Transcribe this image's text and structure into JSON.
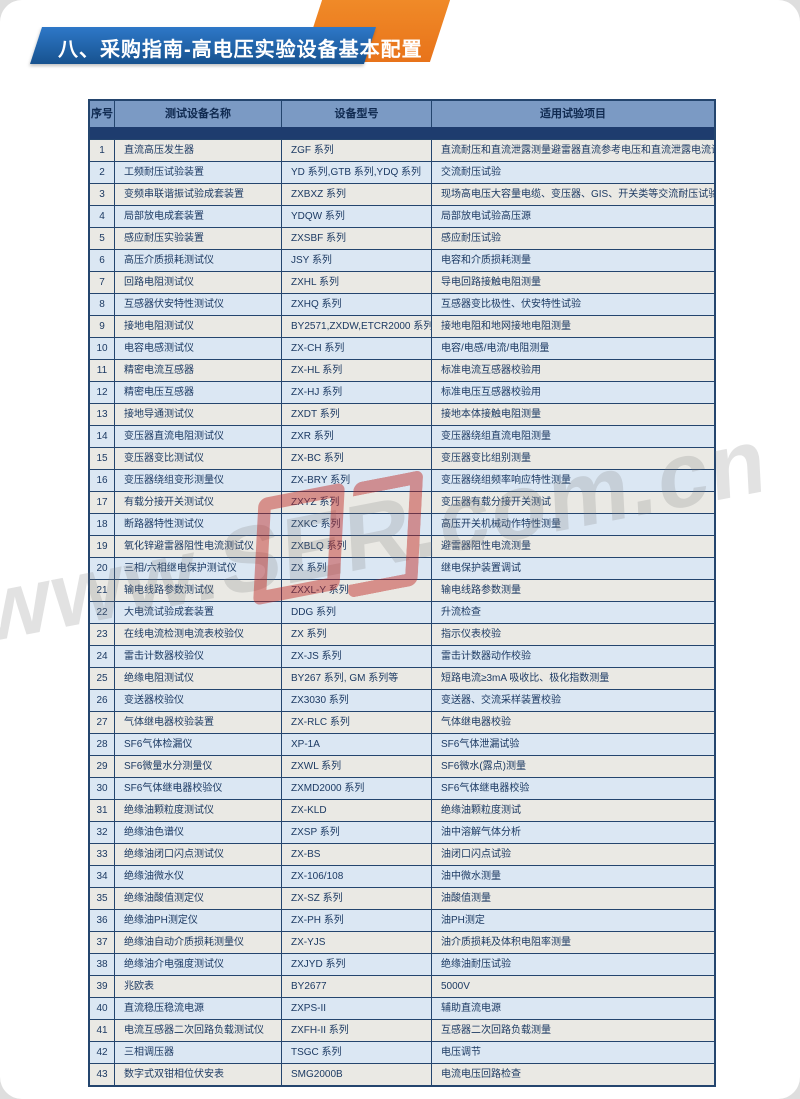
{
  "page": {
    "title": "八、采购指南-高电压实验设备基本配置"
  },
  "watermark": {
    "prefix": "www.",
    "middle": "SER",
    "suffix": ".com.cn"
  },
  "colors": {
    "banner_blue": "#17528f",
    "banner_orange": "#e8731a",
    "header_bg": "#7b9ac4",
    "navy_strip": "#1e3c6e",
    "row_odd": "#eae9e4",
    "row_even": "#dbe7f3",
    "table_border": "#24456e",
    "text": "#1c3a63",
    "watermark_red": "#be231e"
  },
  "table": {
    "headers": [
      "序号",
      "测试设备名称",
      "设备型号",
      "适用试验项目"
    ],
    "rows": [
      {
        "no": "1",
        "name": "直流高压发生器",
        "model": "ZGF 系列",
        "items": "直流耐压和直流泄露测量避雷器直流参考电压和直流泄露电流试验"
      },
      {
        "no": "2",
        "name": "工频耐压试验装置",
        "model": "YD 系列,GTB 系列,YDQ 系列",
        "items": "交流耐压试验"
      },
      {
        "no": "3",
        "name": "变频串联谐振试验成套装置",
        "model": "ZXBXZ 系列",
        "items": "现场高电压大容量电缆、变压器、GIS、开关类等交流耐压试验"
      },
      {
        "no": "4",
        "name": "局部放电成套装置",
        "model": "YDQW 系列",
        "items": "局部放电试验高压源"
      },
      {
        "no": "5",
        "name": "感应耐压实验装置",
        "model": "ZXSBF 系列",
        "items": "感应耐压试验"
      },
      {
        "no": "6",
        "name": "高压介质损耗测试仪",
        "model": "JSY 系列",
        "items": "电容和介质损耗测量"
      },
      {
        "no": "7",
        "name": "回路电阻测试仪",
        "model": "ZXHL 系列",
        "items": "导电回路接触电阻测量"
      },
      {
        "no": "8",
        "name": "互感器伏安特性测试仪",
        "model": "ZXHQ 系列",
        "items": "互感器变比极性、伏安特性试验"
      },
      {
        "no": "9",
        "name": "接地电阻测试仪",
        "model": "BY2571,ZXDW,ETCR2000 系列",
        "items": "接地电阻和地网接地电阻测量"
      },
      {
        "no": "10",
        "name": "电容电感测试仪",
        "model": "ZX-CH 系列",
        "items": "电容/电感/电流/电阻测量"
      },
      {
        "no": "11",
        "name": "精密电流互感器",
        "model": "ZX-HL 系列",
        "items": "标准电流互感器校验用"
      },
      {
        "no": "12",
        "name": "精密电压互感器",
        "model": "ZX-HJ 系列",
        "items": "标准电压互感器校验用"
      },
      {
        "no": "13",
        "name": "接地导通测试仪",
        "model": "ZXDT 系列",
        "items": "接地本体接触电阻测量"
      },
      {
        "no": "14",
        "name": "变压器直流电阻测试仪",
        "model": "ZXR 系列",
        "items": "变压器绕组直流电阻测量"
      },
      {
        "no": "15",
        "name": "变压器变比测试仪",
        "model": "ZX-BC 系列",
        "items": "变压器变比组别测量"
      },
      {
        "no": "16",
        "name": "变压器绕组变形测量仪",
        "model": "ZX-BRY 系列",
        "items": "变压器绕组频率响应特性测量"
      },
      {
        "no": "17",
        "name": "有载分接开关测试仪",
        "model": "ZXYZ 系列",
        "items": "变压器有载分接开关测试"
      },
      {
        "no": "18",
        "name": "断路器特性测试仪",
        "model": "ZXKC 系列",
        "items": "高压开关机械动作特性测量"
      },
      {
        "no": "19",
        "name": "氧化锌避雷器阻性电流测试仪",
        "model": "ZXBLQ 系列",
        "items": "避雷器阻性电流测量"
      },
      {
        "no": "20",
        "name": "三相/六相继电保护测试仪",
        "model": "ZX 系列",
        "items": "继电保护装置调试"
      },
      {
        "no": "21",
        "name": "输电线路参数测试仪",
        "model": "ZXXL-Y 系列",
        "items": "输电线路参数测量"
      },
      {
        "no": "22",
        "name": "大电流试验成套装置",
        "model": "DDG 系列",
        "items": "升流检查"
      },
      {
        "no": "23",
        "name": "在线电流检测电流表校验仪",
        "model": "ZX 系列",
        "items": "指示仪表校验"
      },
      {
        "no": "24",
        "name": "雷击计数器校验仪",
        "model": "ZX-JS 系列",
        "items": "雷击计数器动作校验"
      },
      {
        "no": "25",
        "name": "绝缘电阻测试仪",
        "model": "BY267 系列, GM 系列等",
        "items": "短路电流≥3mA 吸收比、极化指数测量"
      },
      {
        "no": "26",
        "name": "变送器校验仪",
        "model": "ZX3030 系列",
        "items": "变送器、交流采样装置校验"
      },
      {
        "no": "27",
        "name": "气体继电器校验装置",
        "model": "ZX-RLC 系列",
        "items": "气体继电器校验"
      },
      {
        "no": "28",
        "name": "SF6气体检漏仪",
        "model": "XP-1A",
        "items": "SF6气体泄漏试验"
      },
      {
        "no": "29",
        "name": "SF6微量水分测量仪",
        "model": "ZXWL 系列",
        "items": "SF6微水(露点)测量"
      },
      {
        "no": "30",
        "name": "SF6气体继电器校验仪",
        "model": "ZXMD2000 系列",
        "items": "SF6气体继电器校验"
      },
      {
        "no": "31",
        "name": "绝缘油颗粒度测试仪",
        "model": "ZX-KLD",
        "items": "绝缘油颗粒度测试"
      },
      {
        "no": "32",
        "name": "绝缘油色谱仪",
        "model": "ZXSP 系列",
        "items": "油中溶解气体分析"
      },
      {
        "no": "33",
        "name": "绝缘油闭口闪点测试仪",
        "model": "ZX-BS",
        "items": "油闭口闪点试验"
      },
      {
        "no": "34",
        "name": "绝缘油微水仪",
        "model": "ZX-106/108",
        "items": "油中微水测量"
      },
      {
        "no": "35",
        "name": "绝缘油酸值测定仪",
        "model": "ZX-SZ 系列",
        "items": "油酸值测量"
      },
      {
        "no": "36",
        "name": "绝缘油PH测定仪",
        "model": "ZX-PH 系列",
        "items": "油PH测定"
      },
      {
        "no": "37",
        "name": "绝缘油自动介质损耗测量仪",
        "model": "ZX-YJS",
        "items": "油介质损耗及体积电阻率测量"
      },
      {
        "no": "38",
        "name": "绝缘油介电强度测试仪",
        "model": "ZXJYD 系列",
        "items": "绝缘油耐压试验"
      },
      {
        "no": "39",
        "name": "兆欧表",
        "model": "BY2677",
        "items": "5000V"
      },
      {
        "no": "40",
        "name": "直流稳压稳流电源",
        "model": "ZXPS-II",
        "items": "辅助直流电源"
      },
      {
        "no": "41",
        "name": "电流互感器二次回路负载测试仪",
        "model": "ZXFH-II 系列",
        "items": "互感器二次回路负载测量"
      },
      {
        "no": "42",
        "name": "三相调压器",
        "model": "TSGC 系列",
        "items": "电压调节"
      },
      {
        "no": "43",
        "name": "数字式双钳相位伏安表",
        "model": "SMG2000B",
        "items": "电流电压回路检查"
      }
    ]
  }
}
